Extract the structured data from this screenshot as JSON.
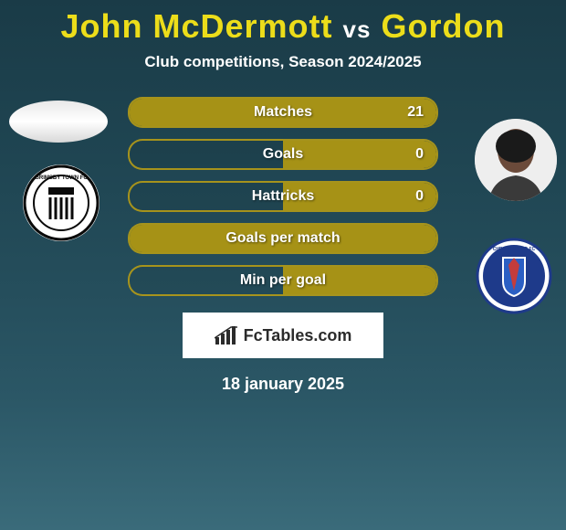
{
  "title": {
    "player1": "John McDermott",
    "vs": "vs",
    "player2": "Gordon",
    "player1_color": "#ecdd1a",
    "player2_color": "#ecdd1a",
    "fontsize": 36
  },
  "subtitle": "Club competitions, Season 2024/2025",
  "stats": {
    "bar_border_color": "#a69216",
    "bar_fill_color": "#a69216",
    "text_color": "#ffffff",
    "rows": [
      {
        "label": "Matches",
        "left": "",
        "right": "21",
        "left_pct": 0,
        "right_pct": 100
      },
      {
        "label": "Goals",
        "left": "",
        "right": "0",
        "left_pct": 0,
        "right_pct": 50
      },
      {
        "label": "Hattricks",
        "left": "",
        "right": "0",
        "left_pct": 0,
        "right_pct": 50
      },
      {
        "label": "Goals per match",
        "left": "",
        "right": "",
        "left_pct": 0,
        "right_pct": 100
      },
      {
        "label": "Min per goal",
        "left": "",
        "right": "",
        "left_pct": 0,
        "right_pct": 50
      }
    ]
  },
  "logo_text": "FcTables.com",
  "date": "18 january 2025",
  "colors": {
    "bg_top": "#1a3b47",
    "bg_bottom": "#3a6b7a",
    "white": "#ffffff"
  },
  "clubs": {
    "left_name": "grimsby-town-badge",
    "right_name": "chesterfield-badge"
  },
  "avatars": {
    "left_name": "player1-avatar",
    "right_name": "player2-avatar"
  }
}
